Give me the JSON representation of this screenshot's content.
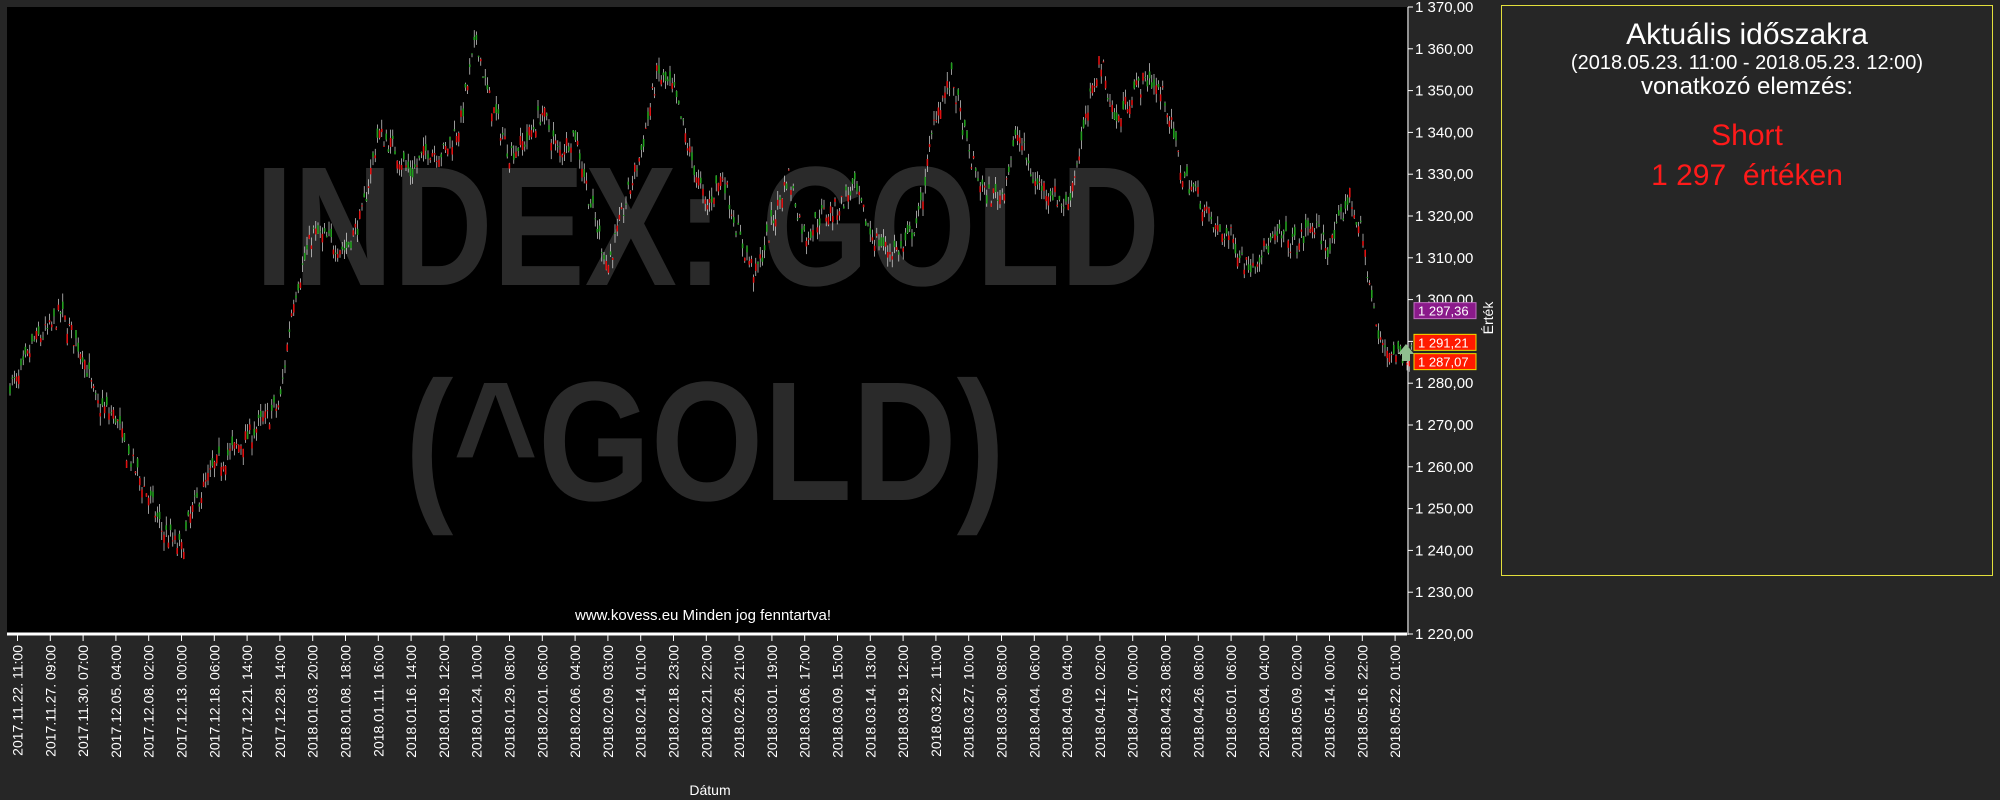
{
  "colors": {
    "background": "#262626",
    "plot_background": "#000000",
    "axis_text": "#ffffff",
    "watermark": "#2a2a2a",
    "candle_up": "#22a01e",
    "candle_down": "#e01010",
    "wick": "#ffffff",
    "panel_border": "#e2df3c",
    "label_current": "#8a1a8a",
    "label_high": "#ff1a00",
    "label_low": "#ff1a00",
    "label_border": "#f0e000",
    "signal": "#ff1a1a",
    "marker": "#8fbf8f"
  },
  "panel": {
    "title": "Aktuális időszakra",
    "period": "(2018.05.23. 11:00 - 2018.05.23. 12:00)",
    "subtitle": "vonatkozó elemzés:",
    "signal": "Short",
    "value_text": "1 297  értéken"
  },
  "chart_data": {
    "type": "candlestick",
    "watermark": [
      "INDEX: GOLD",
      "(^GOLD)"
    ],
    "copyright": "www.kovess.eu Minden jog fenntartva!",
    "xlabel": "Dátum",
    "ylabel": "Érték",
    "ylim": [
      1220,
      1370
    ],
    "y_ticks": [
      1220,
      1230,
      1240,
      1250,
      1260,
      1270,
      1280,
      1290,
      1300,
      1310,
      1320,
      1330,
      1340,
      1350,
      1360,
      1370
    ],
    "y_tick_labels": [
      "1 220,00",
      "1 230,00",
      "1 240,00",
      "1 250,00",
      "1 260,00",
      "1 270,00",
      "1 280,00",
      "1 290,00",
      "1 300,00",
      "1 310,00",
      "1 320,00",
      "1 330,00",
      "1 340,00",
      "1 350,00",
      "1 360,00",
      "1 370,00"
    ],
    "x_tick_labels": [
      "2017.11.22. 11:00",
      "2017.11.27. 09:00",
      "2017.11.30. 07:00",
      "2017.12.05. 04:00",
      "2017.12.08. 02:00",
      "2017.12.13. 00:00",
      "2017.12.18. 06:00",
      "2017.12.21. 14:00",
      "2017.12.28. 14:00",
      "2018.01.03. 20:00",
      "2018.01.08. 18:00",
      "2018.01.11. 16:00",
      "2018.01.16. 14:00",
      "2018.01.19. 12:00",
      "2018.01.24. 10:00",
      "2018.01.29. 08:00",
      "2018.02.01. 06:00",
      "2018.02.06. 04:00",
      "2018.02.09. 03:00",
      "2018.02.14. 01:00",
      "2018.02.18. 23:00",
      "2018.02.21. 22:00",
      "2018.02.26. 21:00",
      "2018.03.01. 19:00",
      "2018.03.06. 17:00",
      "2018.03.09. 15:00",
      "2018.03.14. 13:00",
      "2018.03.19. 12:00",
      "2018.03.22. 11:00",
      "2018.03.27. 10:00",
      "2018.03.30. 08:00",
      "2018.04.04. 06:00",
      "2018.04.09. 04:00",
      "2018.04.12. 02:00",
      "2018.04.17. 00:00",
      "2018.04.23. 08:00",
      "2018.04.26. 08:00",
      "2018.05.01. 06:00",
      "2018.05.04. 04:00",
      "2018.05.09. 02:00",
      "2018.05.14. 00:00",
      "2018.05.16. 22:00",
      "2018.05.22. 01:00"
    ],
    "price_path_x_positions_tick_index": [
      0,
      0.5,
      1,
      1.3,
      2,
      2.4,
      3,
      3.3,
      4,
      4.4,
      5,
      5.3,
      6,
      7,
      8,
      8.4,
      9,
      9.5,
      10,
      10.5,
      11,
      11.5,
      12,
      12.5,
      13,
      13.5,
      14,
      14.3,
      15,
      15.5,
      16,
      16.5,
      17,
      17.5,
      18,
      18.5,
      19,
      19.5,
      20,
      20.5,
      21,
      21.5,
      22,
      22.5,
      23,
      23.5,
      24,
      24.5,
      25,
      25.5,
      26,
      26.5,
      27,
      27.5,
      28,
      28.5,
      29,
      29.5,
      30,
      30.5,
      31,
      31.5,
      32,
      32.5,
      33,
      33.5,
      34,
      34.5,
      35,
      35.5,
      36,
      36.5,
      37,
      37.5,
      38,
      38.5,
      39,
      39.5,
      40,
      40.3,
      40.6,
      41,
      41.5,
      42,
      42.5
    ],
    "price_path_values": [
      1280,
      1290,
      1293,
      1297,
      1287,
      1275,
      1272,
      1264,
      1253,
      1245,
      1240,
      1249,
      1260,
      1267,
      1275,
      1300,
      1316,
      1314,
      1312,
      1320,
      1340,
      1336,
      1330,
      1336,
      1335,
      1342,
      1363,
      1350,
      1335,
      1338,
      1345,
      1335,
      1340,
      1322,
      1308,
      1322,
      1335,
      1354,
      1350,
      1335,
      1322,
      1330,
      1315,
      1306,
      1318,
      1330,
      1315,
      1320,
      1322,
      1327,
      1316,
      1312,
      1312,
      1320,
      1345,
      1353,
      1335,
      1325,
      1325,
      1340,
      1328,
      1326,
      1322,
      1340,
      1358,
      1342,
      1350,
      1353,
      1348,
      1330,
      1325,
      1317,
      1315,
      1308,
      1312,
      1315,
      1313,
      1318,
      1312,
      1318,
      1325,
      1315,
      1290,
      1287,
      1287,
      1290,
      1292
    ],
    "price_labels": {
      "current": {
        "value": 1297.36,
        "text": "1 297,36"
      },
      "high": {
        "value": 1291.21,
        "text": "1 291,21"
      },
      "low": {
        "value": 1287.07,
        "text": "1 287,07"
      }
    },
    "signal": {
      "direction": "Short",
      "value": 1297
    }
  }
}
